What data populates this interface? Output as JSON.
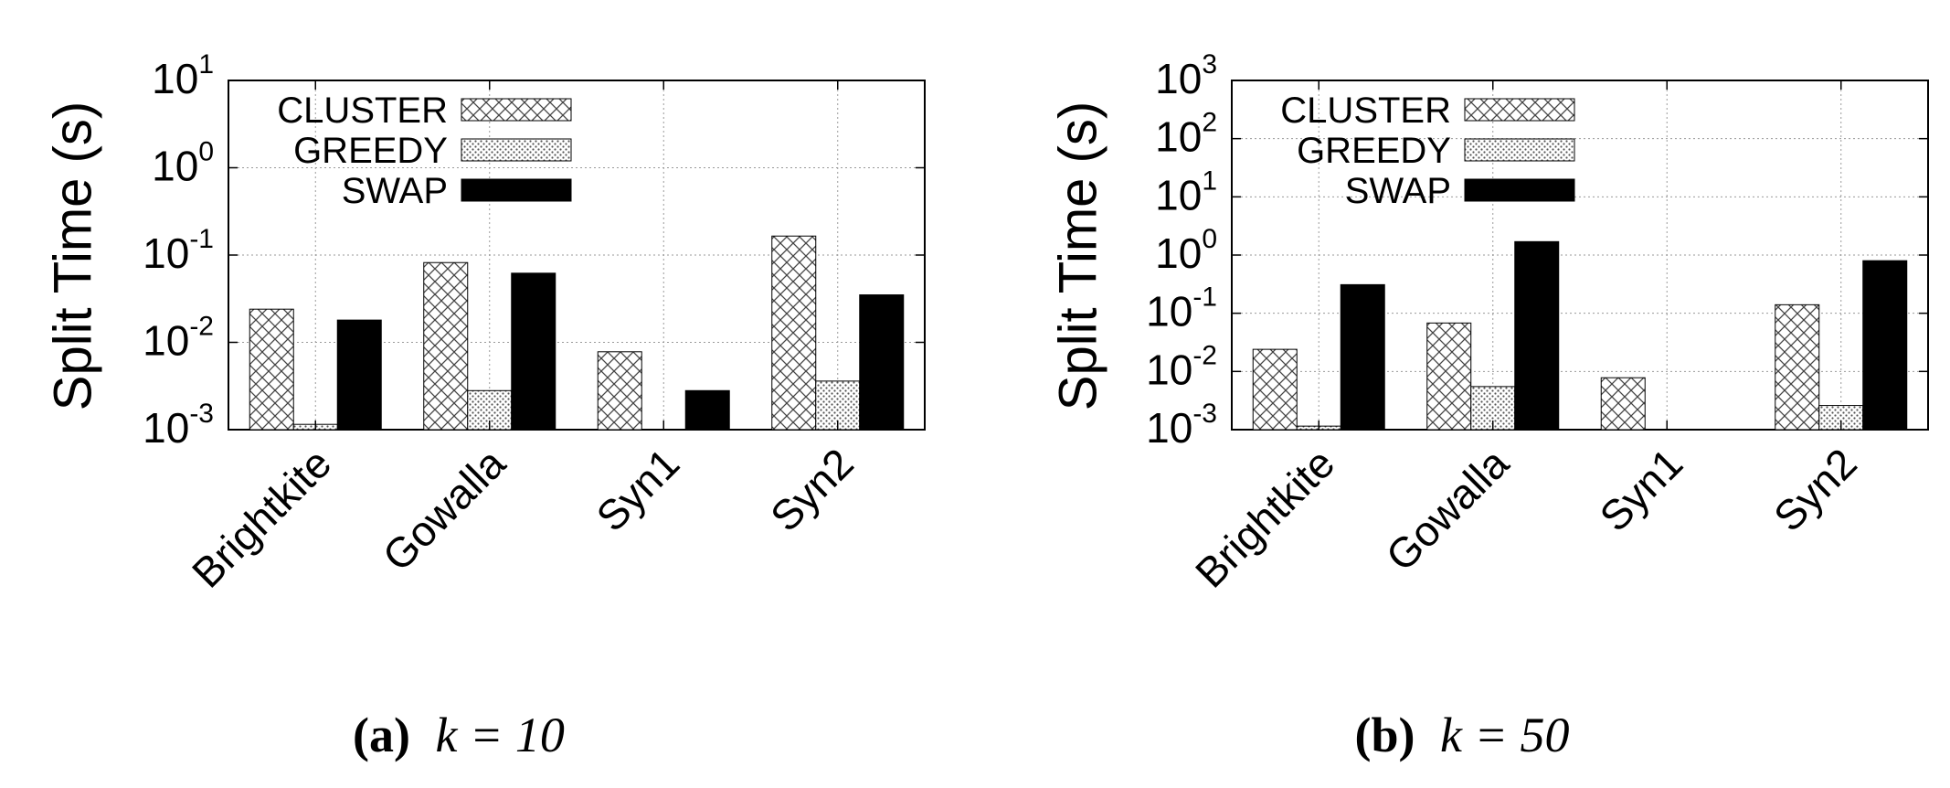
{
  "chart_data": [
    {
      "type": "bar",
      "caption": {
        "label": "(a)",
        "math": "k = 10"
      },
      "ylabel": "Split Time (s)",
      "yscale": "log",
      "ylim": [
        0.001,
        10
      ],
      "ytick_exponents": [
        -3,
        -2,
        -1,
        0,
        1
      ],
      "categories": [
        "Brightkite",
        "Gowalla",
        "Syn1",
        "Syn2"
      ],
      "series": [
        {
          "name": "CLUSTER",
          "pattern": "cross-hatch",
          "values": [
            0.024,
            0.082,
            0.0078,
            0.165
          ]
        },
        {
          "name": "GREEDY",
          "pattern": "dots",
          "values": [
            0.00115,
            0.0028,
            null,
            0.0036
          ]
        },
        {
          "name": "SWAP",
          "pattern": "solid-black",
          "values": [
            0.018,
            0.062,
            0.0028,
            0.035
          ]
        }
      ],
      "legend": "top-left",
      "grid": true
    },
    {
      "type": "bar",
      "caption": {
        "label": "(b)",
        "math": "k = 50"
      },
      "ylabel": "Split Time (s)",
      "yscale": "log",
      "ylim": [
        0.001,
        1000
      ],
      "ytick_exponents": [
        -3,
        -2,
        -1,
        0,
        1,
        2,
        3
      ],
      "categories": [
        "Brightkite",
        "Gowalla",
        "Syn1",
        "Syn2"
      ],
      "series": [
        {
          "name": "CLUSTER",
          "pattern": "cross-hatch",
          "values": [
            0.024,
            0.068,
            0.0078,
            0.14
          ]
        },
        {
          "name": "GREEDY",
          "pattern": "dots",
          "values": [
            0.00115,
            0.0055,
            null,
            0.0026
          ]
        },
        {
          "name": "SWAP",
          "pattern": "solid-black",
          "values": [
            0.31,
            1.7,
            null,
            0.8
          ]
        }
      ],
      "legend": "top-left",
      "grid": true
    }
  ]
}
